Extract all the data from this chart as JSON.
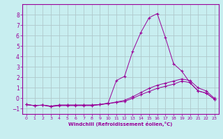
{
  "xlabel": "Windchill (Refroidissement éolien,°C)",
  "background_color": "#c8eef0",
  "line_color": "#990099",
  "grid_color": "#b0c8cc",
  "xlim": [
    -0.5,
    23.5
  ],
  "ylim": [
    -1.5,
    9.0
  ],
  "yticks": [
    -1,
    0,
    1,
    2,
    3,
    4,
    5,
    6,
    7,
    8
  ],
  "xticks": [
    0,
    1,
    2,
    3,
    4,
    5,
    6,
    7,
    8,
    9,
    10,
    11,
    12,
    13,
    14,
    15,
    16,
    17,
    18,
    19,
    20,
    21,
    22,
    23
  ],
  "line1_x": [
    0,
    1,
    2,
    3,
    4,
    5,
    6,
    7,
    8,
    9,
    10,
    11,
    12,
    13,
    14,
    15,
    16,
    17,
    18,
    19,
    20,
    21,
    22,
    23
  ],
  "line1_y": [
    -0.6,
    -0.7,
    -0.65,
    -0.8,
    -0.7,
    -0.7,
    -0.7,
    -0.7,
    -0.7,
    -0.6,
    -0.45,
    1.7,
    2.1,
    4.5,
    6.3,
    7.7,
    8.1,
    5.8,
    3.3,
    2.6,
    1.5,
    0.7,
    0.5,
    -0.1
  ],
  "line2_x": [
    0,
    1,
    2,
    3,
    4,
    5,
    6,
    7,
    8,
    9,
    10,
    11,
    12,
    13,
    14,
    15,
    16,
    17,
    18,
    19,
    20,
    21,
    22,
    23
  ],
  "line2_y": [
    -0.6,
    -0.7,
    -0.65,
    -0.75,
    -0.65,
    -0.65,
    -0.65,
    -0.65,
    -0.65,
    -0.6,
    -0.5,
    -0.4,
    -0.3,
    0.0,
    0.35,
    0.65,
    0.95,
    1.15,
    1.35,
    1.65,
    1.5,
    0.7,
    0.5,
    -0.1
  ],
  "line3_x": [
    0,
    1,
    2,
    3,
    4,
    5,
    6,
    7,
    8,
    9,
    10,
    11,
    12,
    13,
    14,
    15,
    16,
    17,
    18,
    19,
    20,
    21,
    22,
    23
  ],
  "line3_y": [
    -0.6,
    -0.7,
    -0.65,
    -0.75,
    -0.65,
    -0.65,
    -0.65,
    -0.65,
    -0.65,
    -0.6,
    -0.5,
    -0.35,
    -0.2,
    0.15,
    0.55,
    0.95,
    1.25,
    1.45,
    1.65,
    1.85,
    1.7,
    1.0,
    0.7,
    0.0
  ]
}
